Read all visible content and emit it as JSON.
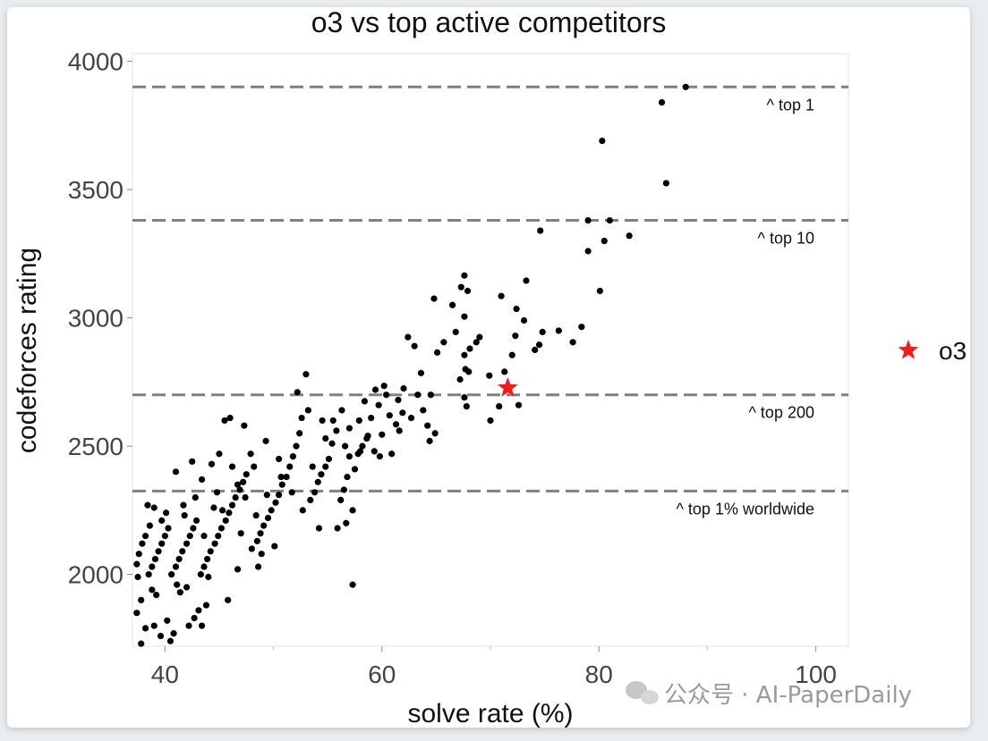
{
  "chart_data": {
    "type": "scatter",
    "title": "o3 vs top active competitors",
    "xlabel": "solve rate (%)",
    "ylabel": "codeforces rating",
    "xlim": [
      37,
      103
    ],
    "ylim": [
      1720,
      4030
    ],
    "x_ticks": [
      40,
      60,
      80,
      100
    ],
    "y_ticks": [
      2000,
      2500,
      3000,
      3500,
      4000
    ],
    "grid": false,
    "legend": {
      "position": "right",
      "entries": [
        {
          "label": "o3",
          "color": "#ee1c1c",
          "marker": "star"
        }
      ]
    },
    "thresholds": [
      {
        "y": 3900,
        "label": "^ top 1"
      },
      {
        "y": 3380,
        "label": "^ top 10"
      },
      {
        "y": 2700,
        "label": "^ top 200"
      },
      {
        "y": 2325,
        "label": "^ top 1% worldwide"
      }
    ],
    "series": [
      {
        "name": "o3",
        "color": "#ee1c1c",
        "marker": "star",
        "points": [
          [
            71.6,
            2727
          ]
        ]
      },
      {
        "color": "#000000",
        "marker": "circle",
        "points": [
          [
            88.0,
            3900
          ],
          [
            85.8,
            3840
          ],
          [
            86.2,
            3525
          ],
          [
            80.3,
            3690
          ],
          [
            81.0,
            3380
          ],
          [
            79.0,
            3380
          ],
          [
            82.8,
            3320
          ],
          [
            80.5,
            3300
          ],
          [
            79.0,
            3260
          ],
          [
            80.1,
            3105
          ],
          [
            74.6,
            3340
          ],
          [
            78.4,
            2965
          ],
          [
            77.6,
            2905
          ],
          [
            76.3,
            2950
          ],
          [
            74.1,
            2875
          ],
          [
            74.8,
            2945
          ],
          [
            74.5,
            2895
          ],
          [
            73.3,
            3145
          ],
          [
            73.1,
            2990
          ],
          [
            71.0,
            3085
          ],
          [
            72.4,
            3035
          ],
          [
            72.3,
            2930
          ],
          [
            72.0,
            2855
          ],
          [
            71.3,
            2790
          ],
          [
            72.6,
            2660
          ],
          [
            70.0,
            2600
          ],
          [
            70.8,
            2655
          ],
          [
            69.9,
            2775
          ],
          [
            67.6,
            3165
          ],
          [
            66.5,
            3050
          ],
          [
            67.6,
            3005
          ],
          [
            67.3,
            3120
          ],
          [
            67.9,
            3105
          ],
          [
            68.7,
            2905
          ],
          [
            69.0,
            2925
          ],
          [
            68.1,
            2880
          ],
          [
            67.6,
            2855
          ],
          [
            67.7,
            2800
          ],
          [
            67.2,
            2760
          ],
          [
            68.0,
            2790
          ],
          [
            67.6,
            2690
          ],
          [
            67.8,
            2655
          ],
          [
            66.8,
            2945
          ],
          [
            65.7,
            2905
          ],
          [
            65.1,
            2865
          ],
          [
            64.8,
            3075
          ],
          [
            64.5,
            2700
          ],
          [
            64.4,
            2520
          ],
          [
            63.0,
            2890
          ],
          [
            63.6,
            2785
          ],
          [
            62.4,
            2925
          ],
          [
            63.3,
            2700
          ],
          [
            62.0,
            2725
          ],
          [
            61.9,
            2630
          ],
          [
            61.3,
            2585
          ],
          [
            60.7,
            2620
          ],
          [
            60.2,
            2735
          ],
          [
            59.7,
            2660
          ],
          [
            60.0,
            2545
          ],
          [
            59.0,
            2610
          ],
          [
            58.7,
            2540
          ],
          [
            58.2,
            2500
          ],
          [
            57.8,
            2470
          ],
          [
            57.5,
            2410
          ],
          [
            57.0,
            2460
          ],
          [
            56.8,
            2380
          ],
          [
            56.5,
            2330
          ],
          [
            56.2,
            2290
          ],
          [
            55.8,
            2560
          ],
          [
            55.4,
            2510
          ],
          [
            55.1,
            2450
          ],
          [
            54.8,
            2420
          ],
          [
            54.4,
            2390
          ],
          [
            54.1,
            2360
          ],
          [
            53.8,
            2320
          ],
          [
            53.4,
            2290
          ],
          [
            53.2,
            2640
          ],
          [
            53.0,
            2780
          ],
          [
            52.6,
            2610
          ],
          [
            52.4,
            2550
          ],
          [
            52.1,
            2500
          ],
          [
            51.8,
            2460
          ],
          [
            51.5,
            2420
          ],
          [
            51.2,
            2380
          ],
          [
            50.8,
            2350
          ],
          [
            50.5,
            2310
          ],
          [
            50.2,
            2280
          ],
          [
            49.8,
            2250
          ],
          [
            49.5,
            2220
          ],
          [
            49.1,
            2190
          ],
          [
            48.8,
            2160
          ],
          [
            48.5,
            2130
          ],
          [
            48.2,
            2420
          ],
          [
            47.9,
            2470
          ],
          [
            47.5,
            2390
          ],
          [
            47.2,
            2360
          ],
          [
            46.9,
            2330
          ],
          [
            46.5,
            2300
          ],
          [
            46.2,
            2270
          ],
          [
            45.9,
            2240
          ],
          [
            45.6,
            2210
          ],
          [
            45.2,
            2180
          ],
          [
            44.9,
            2150
          ],
          [
            44.6,
            2120
          ],
          [
            44.2,
            2090
          ],
          [
            43.9,
            2060
          ],
          [
            43.6,
            2030
          ],
          [
            43.3,
            2000
          ],
          [
            42.9,
            2210
          ],
          [
            42.6,
            2180
          ],
          [
            42.3,
            2150
          ],
          [
            42.0,
            2120
          ],
          [
            41.6,
            2090
          ],
          [
            41.3,
            2060
          ],
          [
            41.0,
            2030
          ],
          [
            40.6,
            2000
          ],
          [
            40.3,
            2180
          ],
          [
            40.0,
            2150
          ],
          [
            39.7,
            2120
          ],
          [
            39.4,
            2090
          ],
          [
            39.1,
            2060
          ],
          [
            38.8,
            2030
          ],
          [
            38.5,
            2000
          ],
          [
            38.2,
            2150
          ],
          [
            37.9,
            2120
          ],
          [
            37.6,
            2080
          ],
          [
            37.4,
            2040
          ],
          [
            37.5,
            1990
          ],
          [
            45.5,
            2600
          ],
          [
            46.0,
            2610
          ],
          [
            47.3,
            2580
          ],
          [
            49.3,
            2520
          ],
          [
            50.5,
            2450
          ],
          [
            52.2,
            2710
          ],
          [
            54.5,
            2600
          ],
          [
            56.3,
            2640
          ],
          [
            57.0,
            2570
          ],
          [
            58.4,
            2675
          ],
          [
            57.3,
            1960
          ],
          [
            54.2,
            2180
          ],
          [
            55.9,
            2180
          ],
          [
            56.7,
            2200
          ],
          [
            57.3,
            2250
          ],
          [
            50.1,
            2110
          ],
          [
            48.9,
            2080
          ],
          [
            48.6,
            2030
          ],
          [
            46.7,
            2020
          ],
          [
            45.8,
            1900
          ],
          [
            44.0,
            1990
          ],
          [
            43.8,
            1880
          ],
          [
            43.1,
            1860
          ],
          [
            42.7,
            1830
          ],
          [
            43.4,
            1800
          ],
          [
            42.2,
            1800
          ],
          [
            40.8,
            1770
          ],
          [
            40.5,
            1740
          ],
          [
            39.6,
            1760
          ],
          [
            39.0,
            1800
          ],
          [
            38.2,
            1790
          ],
          [
            37.8,
            1730
          ],
          [
            37.4,
            1850
          ],
          [
            37.8,
            1900
          ],
          [
            39.2,
            1920
          ],
          [
            40.2,
            1820
          ],
          [
            41.4,
            1930
          ],
          [
            42.0,
            1950
          ],
          [
            41.1,
            1960
          ],
          [
            38.8,
            1940
          ],
          [
            38.4,
            2270
          ],
          [
            39.0,
            2260
          ],
          [
            40.1,
            2240
          ],
          [
            41.0,
            2400
          ],
          [
            42.5,
            2440
          ],
          [
            43.4,
            2370
          ],
          [
            44.3,
            2430
          ],
          [
            45.0,
            2470
          ],
          [
            44.8,
            2320
          ],
          [
            46.2,
            2420
          ],
          [
            46.7,
            2350
          ],
          [
            47.4,
            2300
          ],
          [
            48.4,
            2230
          ],
          [
            49.4,
            2310
          ],
          [
            50.7,
            2380
          ],
          [
            51.7,
            2320
          ],
          [
            52.7,
            2250
          ],
          [
            53.6,
            2420
          ],
          [
            54.8,
            2530
          ],
          [
            55.5,
            2600
          ],
          [
            56.6,
            2500
          ],
          [
            57.9,
            2600
          ],
          [
            58.6,
            2530
          ],
          [
            59.3,
            2480
          ],
          [
            60.9,
            2470
          ],
          [
            61.6,
            2560
          ],
          [
            62.7,
            2610
          ],
          [
            63.8,
            2640
          ],
          [
            64.2,
            2580
          ],
          [
            64.9,
            2550
          ],
          [
            61.5,
            2680
          ],
          [
            60.4,
            2700
          ],
          [
            59.4,
            2720
          ],
          [
            58.0,
            2480
          ],
          [
            59.8,
            2460
          ],
          [
            41.8,
            2230
          ],
          [
            43.6,
            2150
          ],
          [
            45.3,
            2250
          ],
          [
            47.0,
            2160
          ],
          [
            48.0,
            2100
          ],
          [
            38.6,
            2190
          ],
          [
            39.7,
            2210
          ],
          [
            41.7,
            2270
          ],
          [
            42.8,
            2300
          ],
          [
            44.5,
            2260
          ]
        ]
      }
    ]
  },
  "watermark": {
    "icon": "wechat-icon",
    "text": "公众号 · AI-PaperDaily"
  }
}
